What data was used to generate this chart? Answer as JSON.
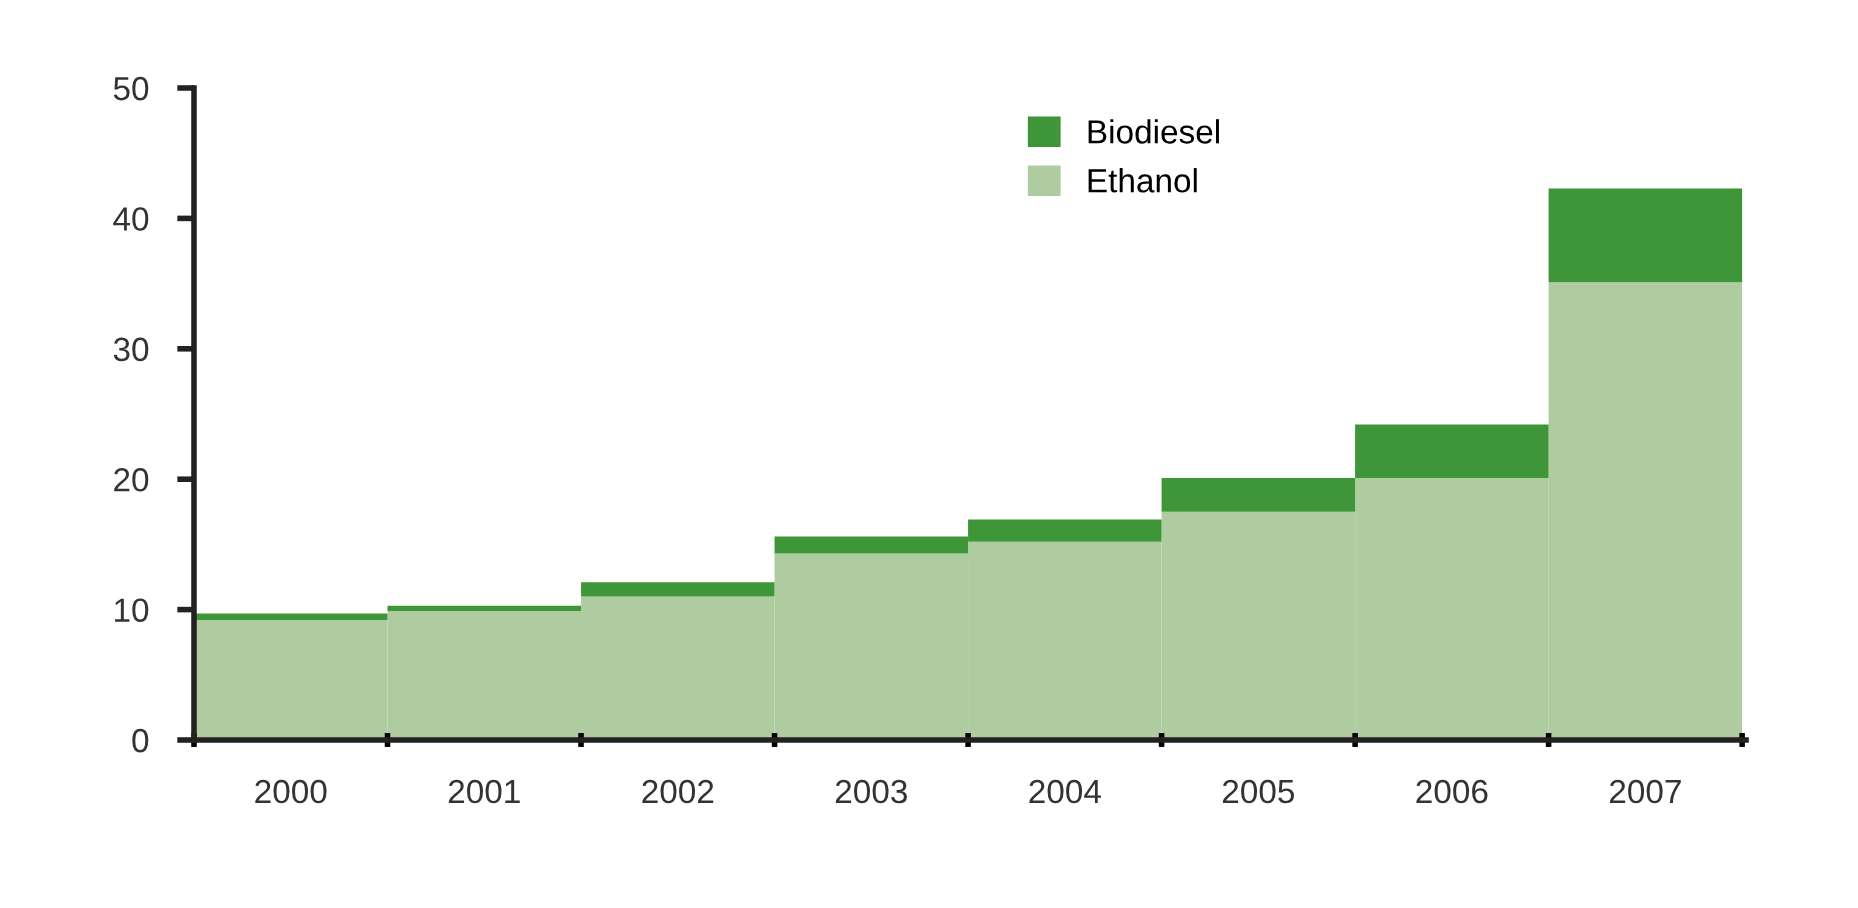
{
  "chart_data": {
    "type": "bar",
    "stacked": true,
    "categories": [
      "2000",
      "2001",
      "2002",
      "2003",
      "2004",
      "2005",
      "2006",
      "2007"
    ],
    "series": [
      {
        "name": "Ethanol",
        "color": "#aecc9f",
        "values": [
          9.2,
          9.9,
          11.0,
          14.3,
          15.2,
          17.5,
          20.1,
          35.1
        ]
      },
      {
        "name": "Biodiesel",
        "color": "#3f9639",
        "values": [
          0.5,
          0.4,
          1.1,
          1.3,
          1.7,
          2.6,
          4.1,
          7.2
        ]
      }
    ],
    "ylim": [
      0,
      50
    ],
    "yticks": [
      0,
      10,
      20,
      30,
      40,
      50
    ],
    "grid": false,
    "legend": "top"
  }
}
